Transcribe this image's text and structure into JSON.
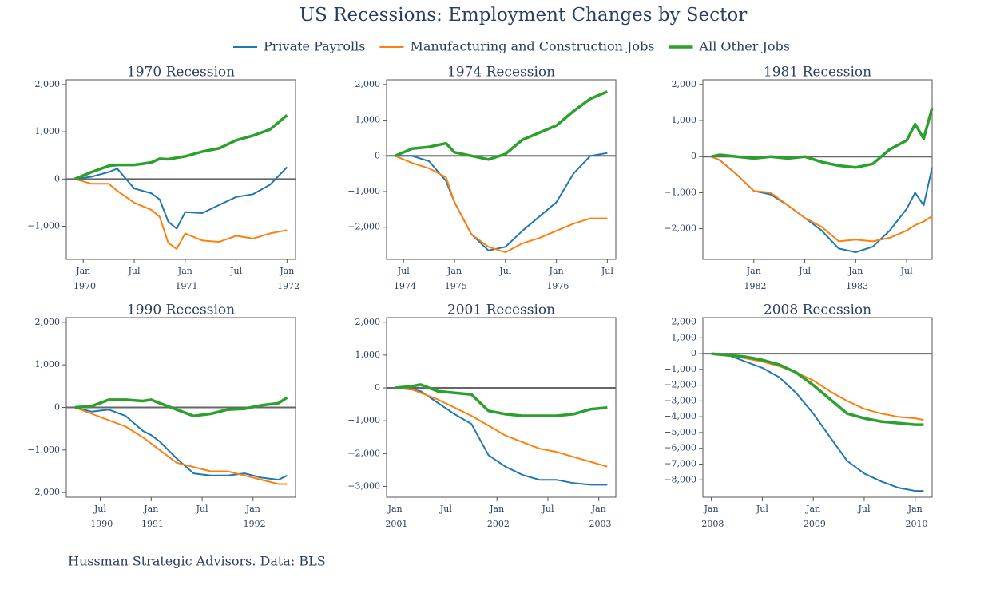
{
  "title": "US Recessions: Employment Changes by Sector",
  "source": "Hussman Strategic Advisors. Data: BLS",
  "chart_data": [
    {
      "type": "line",
      "title": "1970 Recession",
      "x": [
        "1969-12",
        "1970-02",
        "1970-04",
        "1970-05",
        "1970-07",
        "1970-09",
        "1970-10",
        "1970-11",
        "1970-12",
        "1971-01",
        "1971-03",
        "1971-05",
        "1971-07",
        "1971-09",
        "1971-11",
        "1972-01"
      ],
      "series": [
        {
          "name": "Private Payrolls",
          "color": "#1f77b4",
          "linewidth": 2,
          "values": [
            0,
            50,
            150,
            220,
            -200,
            -300,
            -430,
            -900,
            -1050,
            -700,
            -720,
            -550,
            -380,
            -320,
            -120,
            250
          ]
        },
        {
          "name": "Manufacturing and Construction Jobs",
          "color": "#ff7f0e",
          "linewidth": 2,
          "values": [
            0,
            -100,
            -100,
            -250,
            -500,
            -650,
            -800,
            -1350,
            -1480,
            -1150,
            -1300,
            -1330,
            -1200,
            -1260,
            -1150,
            -1080
          ]
        },
        {
          "name": "All Other Jobs",
          "color": "#2ca02c",
          "linewidth": 3.5,
          "values": [
            0,
            150,
            280,
            300,
            300,
            350,
            430,
            420,
            450,
            480,
            580,
            650,
            820,
            920,
            1050,
            1350
          ]
        }
      ],
      "xlim": [
        "1969-11",
        "1972-02"
      ],
      "xticks": [
        {
          "value": "1970-01",
          "label": "Jan 1970"
        },
        {
          "value": "1970-07",
          "label": "Jul"
        },
        {
          "value": "1971-01",
          "label": "Jan 1971"
        },
        {
          "value": "1971-07",
          "label": "Jul"
        },
        {
          "value": "1972-01",
          "label": "Jan 1972"
        }
      ],
      "ylim": [
        -1700,
        2100
      ],
      "yticks": [
        {
          "value": -1000,
          "label": "−1,000"
        },
        0,
        {
          "value": 1000,
          "label": "1,000"
        },
        {
          "value": 2000,
          "label": "2,000"
        }
      ]
    },
    {
      "type": "line",
      "title": "1974 Recession",
      "x": [
        "1974-06",
        "1974-08",
        "1974-10",
        "1974-12",
        "1975-01",
        "1975-03",
        "1975-05",
        "1975-07",
        "1975-09",
        "1975-11",
        "1976-01",
        "1976-03",
        "1976-05",
        "1976-07"
      ],
      "series": [
        {
          "values": [
            0,
            0,
            -150,
            -700,
            -1300,
            -2200,
            -2650,
            -2550,
            -2100,
            -1700,
            -1300,
            -500,
            0,
            80
          ]
        },
        {
          "values": [
            0,
            -200,
            -350,
            -600,
            -1300,
            -2200,
            -2550,
            -2700,
            -2450,
            -2300,
            -2100,
            -1900,
            -1750,
            -1750
          ]
        },
        {
          "values": [
            0,
            200,
            250,
            350,
            100,
            0,
            -100,
            50,
            450,
            650,
            850,
            1250,
            1600,
            1800
          ]
        }
      ],
      "xlim": [
        "1974-05",
        "1976-08"
      ],
      "xticks": [
        {
          "value": "1974-07",
          "label": "Jul 1974"
        },
        {
          "value": "1975-01",
          "label": "Jan 1975"
        },
        {
          "value": "1975-07",
          "label": "Jul"
        },
        {
          "value": "1976-01",
          "label": "Jan 1976"
        },
        {
          "value": "1976-07",
          "label": "Jul"
        }
      ],
      "ylim": [
        -2900,
        2130
      ],
      "yticks": [
        {
          "value": -2000,
          "label": "−2,000"
        },
        {
          "value": -1000,
          "label": "−1,000"
        },
        0,
        {
          "value": 1000,
          "label": "1,000"
        },
        {
          "value": 2000,
          "label": "2,000"
        }
      ]
    },
    {
      "type": "line",
      "title": "1981 Recession",
      "x": [
        "1981-08",
        "1981-09",
        "1981-11",
        "1982-01",
        "1982-03",
        "1982-05",
        "1982-07",
        "1982-09",
        "1982-11",
        "1983-01",
        "1983-03",
        "1983-05",
        "1983-07",
        "1983-08",
        "1983-09",
        "1983-10"
      ],
      "series": [
        {
          "values": [
            0,
            -100,
            -500,
            -950,
            -1050,
            -1350,
            -1700,
            -2050,
            -2550,
            -2650,
            -2500,
            -2050,
            -1450,
            -1000,
            -1350,
            -300
          ]
        },
        {
          "values": [
            0,
            -100,
            -500,
            -950,
            -1000,
            -1350,
            -1700,
            -1950,
            -2350,
            -2300,
            -2350,
            -2250,
            -2050,
            -1900,
            -1800,
            -1650
          ]
        },
        {
          "values": [
            0,
            50,
            0,
            -50,
            0,
            -50,
            0,
            -150,
            -250,
            -300,
            -200,
            200,
            450,
            900,
            500,
            1350
          ]
        }
      ],
      "xlim": [
        "1981-07",
        "1983-10"
      ],
      "xticks": [
        {
          "value": "1982-01",
          "label": "Jan 1982"
        },
        {
          "value": "1982-07",
          "label": "Jul"
        },
        {
          "value": "1983-01",
          "label": "Jan 1983"
        },
        {
          "value": "1983-07",
          "label": "Jul"
        }
      ],
      "ylim": [
        -2850,
        2130
      ],
      "yticks": [
        {
          "value": -2000,
          "label": "−2,000"
        },
        {
          "value": -1000,
          "label": "−1,000"
        },
        0,
        {
          "value": 1000,
          "label": "1,000"
        },
        {
          "value": 2000,
          "label": "2,000"
        }
      ]
    },
    {
      "type": "line",
      "title": "1990 Recession",
      "x": [
        "1990-04",
        "1990-06",
        "1990-08",
        "1990-10",
        "1990-12",
        "1991-01",
        "1991-02",
        "1991-04",
        "1991-06",
        "1991-08",
        "1991-10",
        "1991-12",
        "1992-02",
        "1992-04",
        "1992-05"
      ],
      "series": [
        {
          "values": [
            0,
            -100,
            -50,
            -200,
            -550,
            -650,
            -800,
            -1200,
            -1550,
            -1600,
            -1600,
            -1550,
            -1650,
            -1700,
            -1600
          ]
        },
        {
          "values": [
            0,
            -150,
            -300,
            -450,
            -700,
            -850,
            -1000,
            -1300,
            -1400,
            -1500,
            -1500,
            -1600,
            -1700,
            -1800,
            -1800
          ]
        },
        {
          "values": [
            0,
            30,
            180,
            180,
            150,
            180,
            100,
            -50,
            -200,
            -150,
            -50,
            -30,
            50,
            100,
            230
          ]
        }
      ],
      "xlim": [
        "1990-03",
        "1992-06"
      ],
      "xticks": [
        {
          "value": "1990-07",
          "label": "Jul 1990"
        },
        {
          "value": "1991-01",
          "label": "Jan 1991"
        },
        {
          "value": "1991-07",
          "label": "Jul"
        },
        {
          "value": "1992-01",
          "label": "Jan 1992"
        }
      ],
      "ylim": [
        -2110,
        2110
      ],
      "yticks": [
        {
          "value": -2000,
          "label": "−2,000"
        },
        {
          "value": -1000,
          "label": "−1,000"
        },
        0,
        {
          "value": 1000,
          "label": "1,000"
        },
        {
          "value": 2000,
          "label": "2,000"
        }
      ]
    },
    {
      "type": "line",
      "title": "2001 Recession",
      "x": [
        "2001-01",
        "2001-03",
        "2001-04",
        "2001-06",
        "2001-08",
        "2001-10",
        "2001-12",
        "2002-02",
        "2002-04",
        "2002-06",
        "2002-08",
        "2002-10",
        "2002-12",
        "2003-02"
      ],
      "series": [
        {
          "values": [
            0,
            -50,
            -100,
            -450,
            -800,
            -1100,
            -2050,
            -2400,
            -2650,
            -2800,
            -2800,
            -2900,
            -2950,
            -2950
          ]
        },
        {
          "values": [
            0,
            -50,
            -150,
            -350,
            -600,
            -850,
            -1150,
            -1450,
            -1650,
            -1850,
            -1950,
            -2100,
            -2250,
            -2400
          ]
        },
        {
          "values": [
            0,
            50,
            100,
            -100,
            -150,
            -200,
            -700,
            -800,
            -850,
            -850,
            -850,
            -800,
            -650,
            -600
          ]
        }
      ],
      "xlim": [
        "2000-12",
        "2003-03"
      ],
      "xticks": [
        {
          "value": "2001-01",
          "label": "Jan 2001"
        },
        {
          "value": "2001-07",
          "label": "Jul"
        },
        {
          "value": "2002-01",
          "label": "Jan 2002"
        },
        {
          "value": "2002-07",
          "label": "Jul"
        },
        {
          "value": "2003-01",
          "label": "Jan 2003"
        }
      ],
      "ylim": [
        -3330,
        2140
      ],
      "yticks": [
        {
          "value": -3000,
          "label": "−3,000"
        },
        {
          "value": -2000,
          "label": "−2,000"
        },
        {
          "value": -1000,
          "label": "−1,000"
        },
        0,
        {
          "value": 1000,
          "label": "1,000"
        },
        {
          "value": 2000,
          "label": "2,000"
        }
      ]
    },
    {
      "type": "line",
      "title": "2008 Recession",
      "x": [
        "2008-01",
        "2008-03",
        "2008-05",
        "2008-07",
        "2008-09",
        "2008-11",
        "2009-01",
        "2009-03",
        "2009-05",
        "2009-07",
        "2009-09",
        "2009-11",
        "2010-01",
        "2010-02"
      ],
      "series": [
        {
          "values": [
            0,
            -100,
            -500,
            -900,
            -1500,
            -2500,
            -3800,
            -5300,
            -6800,
            -7600,
            -8100,
            -8500,
            -8700,
            -8700
          ]
        },
        {
          "values": [
            0,
            -100,
            -300,
            -500,
            -800,
            -1200,
            -1700,
            -2400,
            -3000,
            -3500,
            -3800,
            -4000,
            -4100,
            -4200
          ]
        },
        {
          "values": [
            0,
            -100,
            -200,
            -400,
            -700,
            -1200,
            -2000,
            -2900,
            -3800,
            -4100,
            -4300,
            -4400,
            -4500,
            -4500
          ]
        }
      ],
      "xlim": [
        "2007-12",
        "2010-03"
      ],
      "xticks": [
        {
          "value": "2008-01",
          "label": "Jan 2008"
        },
        {
          "value": "2008-07",
          "label": "Jul"
        },
        {
          "value": "2009-01",
          "label": "Jan 2009"
        },
        {
          "value": "2009-07",
          "label": "Jul"
        },
        {
          "value": "2010-01",
          "label": "Jan 2010"
        }
      ],
      "ylim": [
        -9100,
        2280
      ],
      "yticks": [
        {
          "value": -8000,
          "label": "−8,000"
        },
        {
          "value": -7000,
          "label": "−7,000"
        },
        {
          "value": -6000,
          "label": "−6,000"
        },
        {
          "value": -5000,
          "label": "−5,000"
        },
        {
          "value": -4000,
          "label": "−4,000"
        },
        {
          "value": -3000,
          "label": "−3,000"
        },
        {
          "value": -2000,
          "label": "−2,000"
        },
        {
          "value": -1000,
          "label": "−1,000"
        },
        0,
        {
          "value": 1000,
          "label": "1,000"
        },
        {
          "value": 2000,
          "label": "2,000"
        }
      ]
    }
  ]
}
